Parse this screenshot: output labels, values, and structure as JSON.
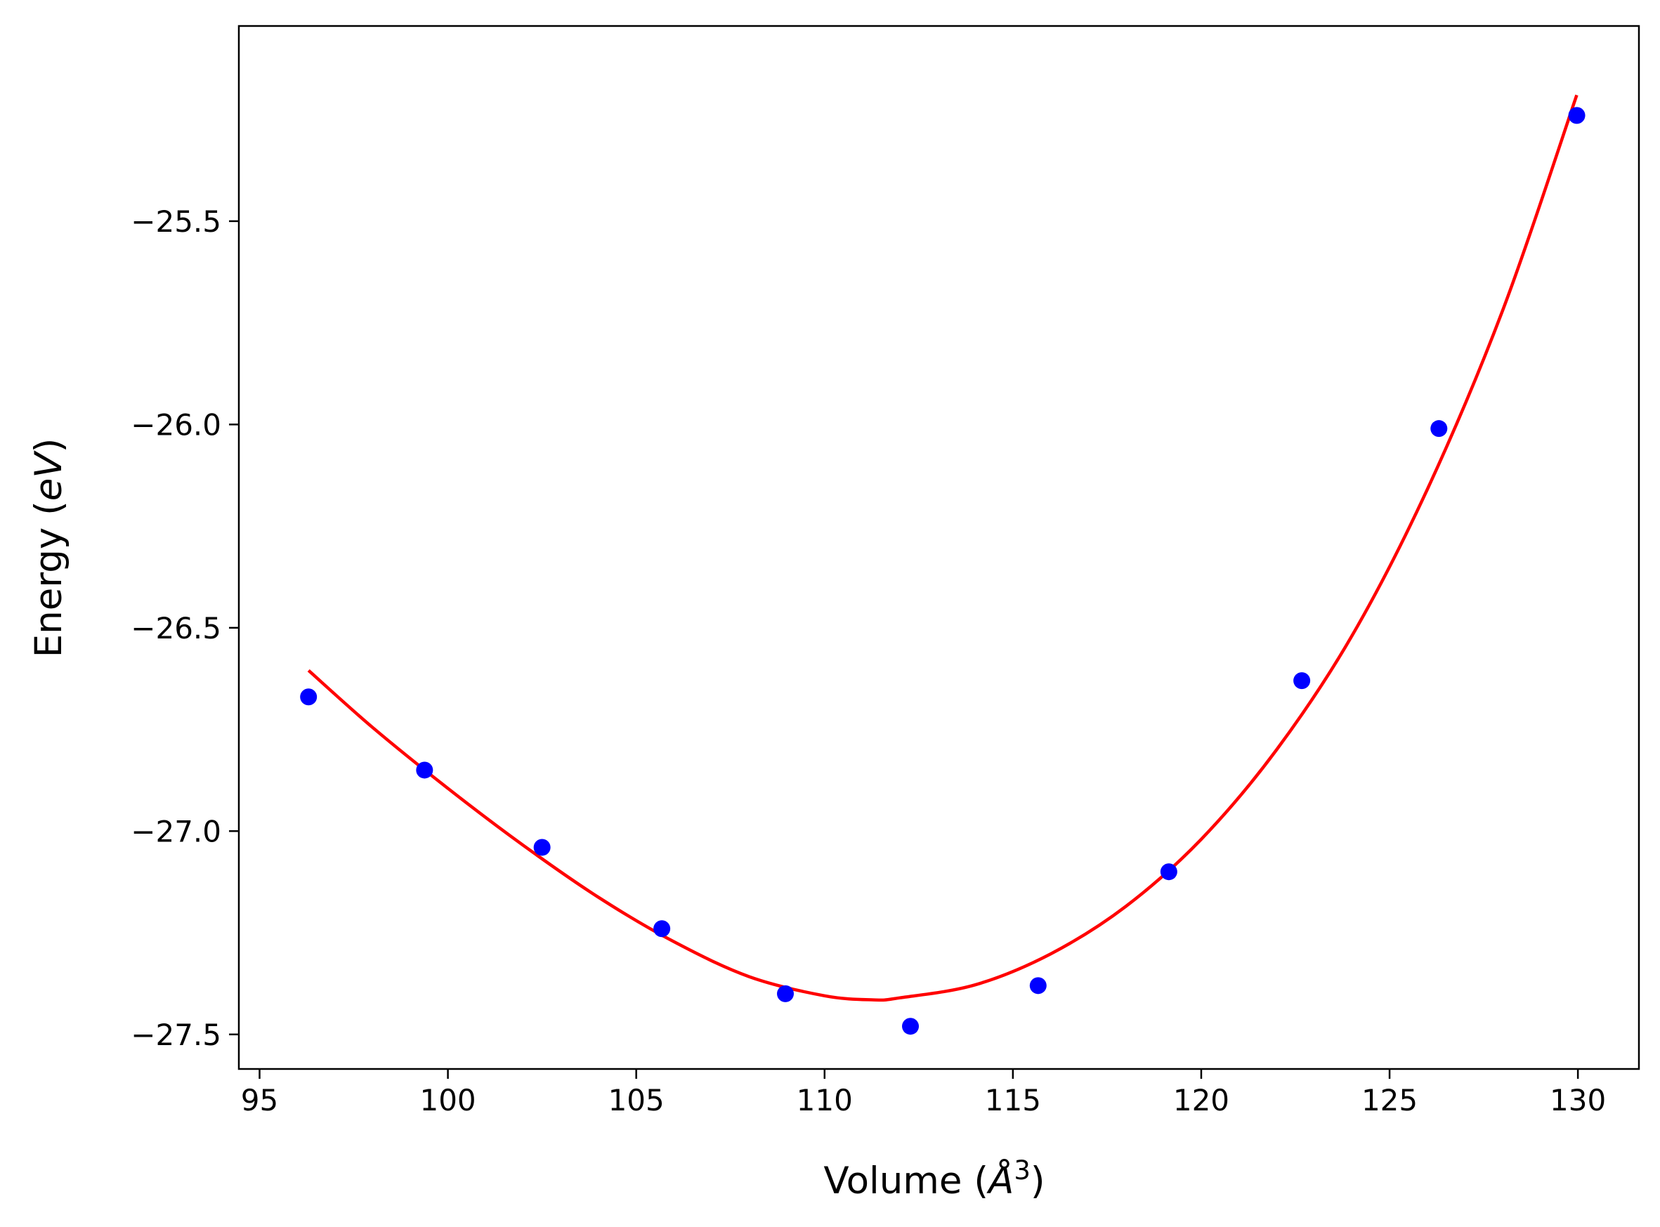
{
  "chart_data": {
    "type": "scatter",
    "xlabel_main": "Volume (",
    "xlabel_unit": "Å",
    "xlabel_exp": "3",
    "xlabel_close": ")",
    "ylabel_main": "Energy (",
    "ylabel_unit": "eV",
    "ylabel_close": ")",
    "xlim": [
      94.45,
      131.62
    ],
    "ylim": [
      -27.585,
      -25.02
    ],
    "xticks": [
      95,
      100,
      105,
      110,
      115,
      120,
      125,
      130
    ],
    "xtick_labels": [
      "95",
      "100",
      "105",
      "110",
      "115",
      "120",
      "125",
      "130"
    ],
    "yticks": [
      -25.5,
      -26.0,
      -26.5,
      -27.0,
      -27.5
    ],
    "ytick_labels": [
      "−25.5",
      "−26.0",
      "−26.5",
      "−27.0",
      "−27.5"
    ],
    "grid": false,
    "series": [
      {
        "kind": "points",
        "color": "#0000ff",
        "x": [
          96.3,
          99.38,
          102.5,
          105.68,
          108.96,
          112.28,
          115.67,
          119.14,
          122.67,
          126.31,
          129.97
        ],
        "y": [
          -26.67,
          -26.85,
          -27.04,
          -27.24,
          -27.4,
          -27.48,
          -27.38,
          -27.1,
          -26.63,
          -26.01,
          -25.24
        ]
      },
      {
        "kind": "fit-curve",
        "color": "#ff0000",
        "x": [
          96.3,
          98.0,
          100.0,
          102.0,
          104.0,
          106.0,
          108.0,
          110.0,
          111.3,
          112.0,
          114.0,
          116.0,
          118.0,
          120.0,
          122.0,
          124.0,
          126.0,
          128.0,
          129.97
        ],
        "y": [
          -26.605,
          -26.745,
          -26.895,
          -27.035,
          -27.163,
          -27.272,
          -27.358,
          -27.405,
          -27.415,
          -27.41,
          -27.378,
          -27.302,
          -27.185,
          -27.02,
          -26.8,
          -26.52,
          -26.16,
          -25.72,
          -25.19
        ]
      }
    ]
  }
}
